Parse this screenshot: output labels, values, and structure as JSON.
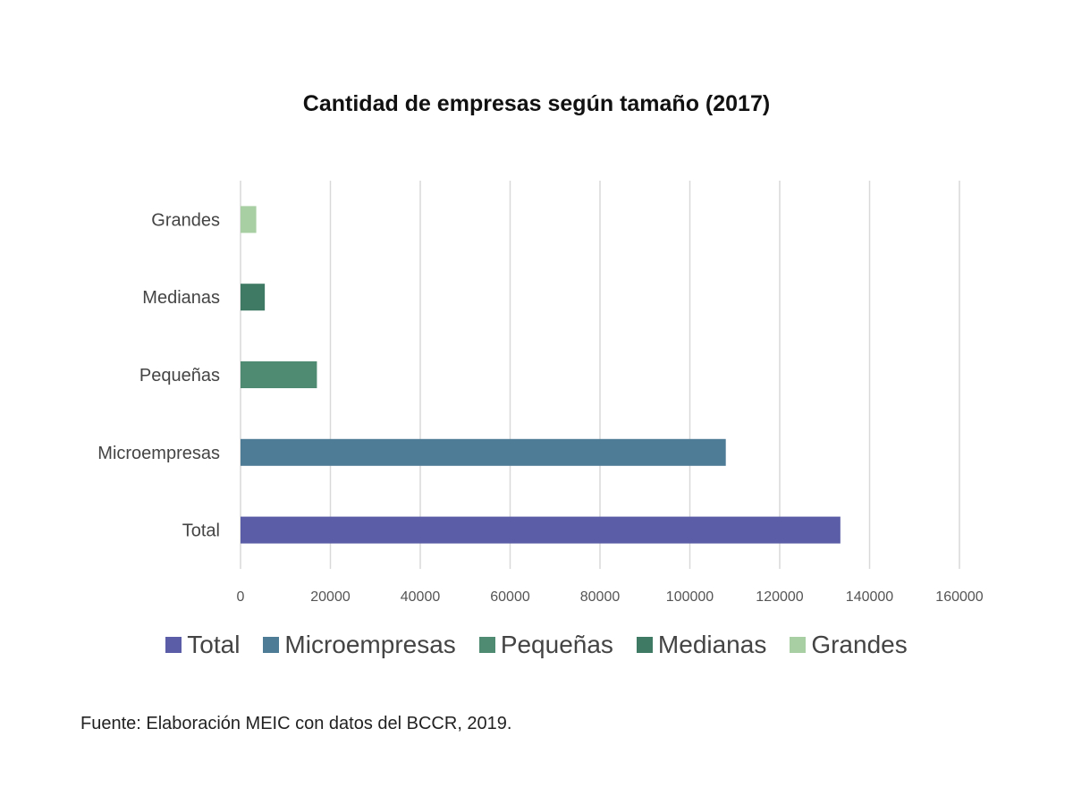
{
  "chart_data": {
    "type": "bar",
    "orientation": "horizontal",
    "title": "Cantidad de empresas según tamaño (2017)",
    "categories": [
      "Total",
      "Microempresas",
      "Pequeñas",
      "Medianas",
      "Grandes"
    ],
    "values": [
      133500,
      108000,
      17000,
      5400,
      3500
    ],
    "colors": [
      "#5b5ea6",
      "#4e7b96",
      "#4f8a72",
      "#3f7a64",
      "#a8cfa3"
    ],
    "xlim": [
      0,
      160000
    ],
    "xticks": [
      0,
      20000,
      40000,
      60000,
      80000,
      100000,
      120000,
      140000,
      160000
    ],
    "xtick_labels": [
      "0",
      "20000",
      "40000",
      "60000",
      "80000",
      "100000",
      "120000",
      "140000",
      "160000"
    ],
    "grid": true,
    "legend_position": "bottom"
  },
  "legend": [
    "Total",
    "Microempresas",
    "Pequeñas",
    "Medianas",
    "Grandes"
  ],
  "source": "Fuente: Elaboración MEIC con datos del BCCR, 2019."
}
